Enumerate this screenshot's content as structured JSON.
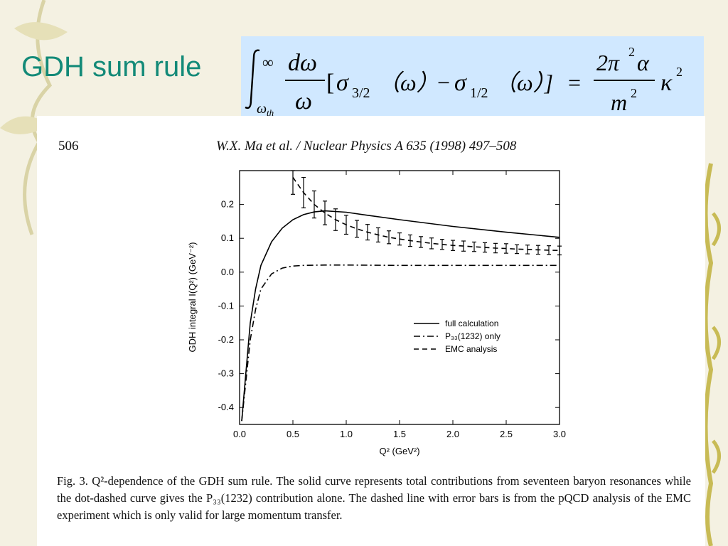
{
  "slide": {
    "title": "GDH sum rule"
  },
  "formula": {
    "int_upper": "∞",
    "int_lower": "ω",
    "int_lower_sub": "th",
    "lhs_num": "dω",
    "lhs_den": "ω",
    "bracket_open": "[",
    "sigma_a": "σ",
    "sigma_a_sub": "3/2",
    "arg_a": "（ω）",
    "minus": "−",
    "sigma_b": "σ",
    "sigma_b_sub": "1/2",
    "arg_b": "（ω）]",
    "equals": "=",
    "rhs_num": "2π",
    "rhs_num_sup": "2",
    "rhs_num_tail": "α",
    "rhs_den": "m",
    "rhs_den_sup": "2",
    "kappa": "κ",
    "kappa_sup": "2"
  },
  "paper": {
    "page_number": "506",
    "running_head": "W.X. Ma et al. / Nuclear Physics A 635 (1998) 497–508",
    "caption_label": "Fig. 3.",
    "caption_text": "Q²-dependence of the GDH sum rule. The solid curve represents total contributions from seventeen baryon resonances while the dot-dashed curve gives the P₃₃(1232) contribution alone. The dashed line with error bars is from the pQCD analysis of the EMC experiment which is only valid for large momentum transfer."
  },
  "chart_data": {
    "type": "line",
    "xlabel": "Q² (GeV²)",
    "ylabel": "GDH integral I(Q²) (GeV⁻²)",
    "xlim": [
      0.0,
      3.0
    ],
    "ylim": [
      -0.45,
      0.3
    ],
    "x_ticks": [
      "0.0",
      "0.5",
      "1.0",
      "1.5",
      "2.0",
      "2.5",
      "3.0"
    ],
    "y_ticks": [
      "-0.4",
      "-0.3",
      "-0.2",
      "-0.1",
      "0.0",
      "0.1",
      "0.2"
    ],
    "legend_position": "lower-right",
    "series": [
      {
        "name": "full calculation",
        "style": "solid",
        "x": [
          0.02,
          0.05,
          0.1,
          0.15,
          0.2,
          0.3,
          0.4,
          0.5,
          0.6,
          0.7,
          0.8,
          1.0,
          1.2,
          1.5,
          2.0,
          2.5,
          3.0
        ],
        "y": [
          -0.44,
          -0.33,
          -0.15,
          -0.05,
          0.02,
          0.09,
          0.13,
          0.155,
          0.17,
          0.178,
          0.181,
          0.177,
          0.168,
          0.155,
          0.135,
          0.118,
          0.103
        ]
      },
      {
        "name": "P₃₃(1232) only",
        "style": "dashdot",
        "x": [
          0.02,
          0.05,
          0.1,
          0.15,
          0.2,
          0.3,
          0.4,
          0.5,
          0.6,
          0.8,
          1.0,
          1.5,
          2.0,
          2.5,
          3.0
        ],
        "y": [
          -0.44,
          -0.35,
          -0.2,
          -0.11,
          -0.05,
          -0.005,
          0.012,
          0.018,
          0.02,
          0.021,
          0.021,
          0.02,
          0.02,
          0.02,
          0.02
        ]
      },
      {
        "name": "EMC analysis",
        "style": "dashed",
        "x": [
          0.5,
          0.6,
          0.7,
          0.8,
          0.9,
          1.0,
          1.1,
          1.2,
          1.3,
          1.4,
          1.5,
          1.6,
          1.7,
          1.8,
          1.9,
          2.0,
          2.1,
          2.2,
          2.3,
          2.4,
          2.5,
          2.6,
          2.7,
          2.8,
          2.9,
          3.0
        ],
        "y": [
          0.28,
          0.235,
          0.2,
          0.175,
          0.155,
          0.14,
          0.128,
          0.118,
          0.11,
          0.103,
          0.098,
          0.093,
          0.089,
          0.085,
          0.082,
          0.079,
          0.077,
          0.075,
          0.073,
          0.071,
          0.07,
          0.068,
          0.067,
          0.066,
          0.065,
          0.064
        ],
        "error": [
          0.05,
          0.045,
          0.04,
          0.035,
          0.032,
          0.028,
          0.025,
          0.023,
          0.021,
          0.019,
          0.018,
          0.017,
          0.016,
          0.016,
          0.015,
          0.015,
          0.015,
          0.014,
          0.014,
          0.014,
          0.014,
          0.013,
          0.013,
          0.013,
          0.013,
          0.013
        ]
      }
    ]
  }
}
